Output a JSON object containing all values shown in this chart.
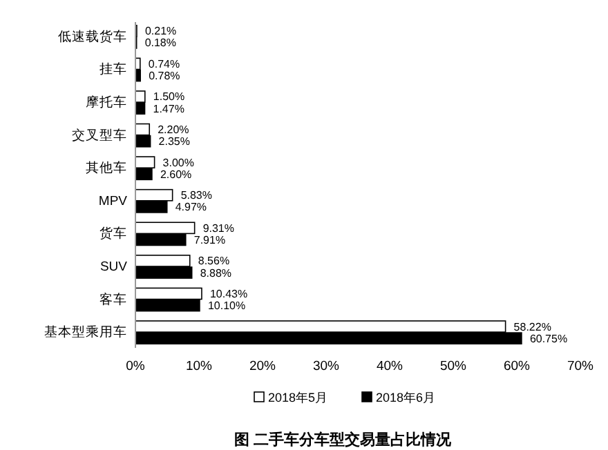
{
  "chart_data": {
    "type": "bar",
    "orientation": "horizontal",
    "title": "图 二手车分车型交易量占比情况",
    "categories": [
      "低速载货车",
      "挂车",
      "摩托车",
      "交叉型车",
      "其他车",
      "MPV",
      "货车",
      "SUV",
      "客车",
      "基本型乘用车"
    ],
    "series": [
      {
        "name": "2018年5月",
        "color": "#ffffff",
        "values": [
          0.21,
          0.74,
          1.5,
          2.2,
          3.0,
          5.83,
          9.31,
          8.56,
          10.43,
          58.22
        ],
        "value_labels": [
          "0.21%",
          "0.74%",
          "1.50%",
          "2.20%",
          "3.00%",
          "5.83%",
          "9.31%",
          "8.56%",
          "10.43%",
          "58.22%"
        ]
      },
      {
        "name": "2018年6月",
        "color": "#000000",
        "values": [
          0.18,
          0.78,
          1.47,
          2.35,
          2.6,
          4.97,
          7.91,
          8.88,
          10.1,
          60.75
        ],
        "value_labels": [
          "0.18%",
          "0.78%",
          "1.47%",
          "2.35%",
          "2.60%",
          "4.97%",
          "7.91%",
          "8.88%",
          "10.10%",
          "60.75%"
        ]
      }
    ],
    "xlim": [
      0,
      70
    ],
    "xticks": [
      {
        "value": 0,
        "label": "0%"
      },
      {
        "value": 10,
        "label": "10%"
      },
      {
        "value": 20,
        "label": "20%"
      },
      {
        "value": 30,
        "label": "30%"
      },
      {
        "value": 40,
        "label": "40%"
      },
      {
        "value": 50,
        "label": "50%"
      },
      {
        "value": 60,
        "label": "60%"
      },
      {
        "value": 70,
        "label": "70%"
      }
    ],
    "grid": false,
    "legend": "bottom"
  }
}
